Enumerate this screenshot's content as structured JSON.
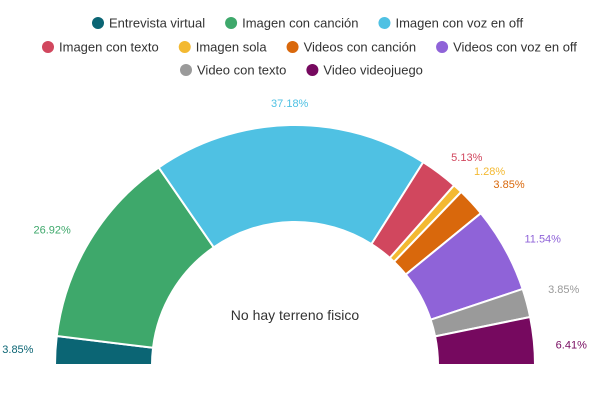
{
  "chart_data": {
    "type": "pie",
    "subtype": "half-donut",
    "center_label": "No hay terreno fisico",
    "legend_position": "top",
    "legend": [
      {
        "name": "Entrevista virtual",
        "color": "#0b6574"
      },
      {
        "name": "Imagen con canción",
        "color": "#3ea86b"
      },
      {
        "name": "Imagen con voz en off",
        "color": "#4fc1e3"
      },
      {
        "name": "Imagen con texto",
        "color": "#d1475e"
      },
      {
        "name": "Imagen sola",
        "color": "#f3b932"
      },
      {
        "name": "Videos con canción",
        "color": "#d9680c"
      },
      {
        "name": "Videos con voz en off",
        "color": "#8f63d8"
      },
      {
        "name": "Video con texto",
        "color": "#9a9a9a"
      },
      {
        "name": "Video videojuego",
        "color": "#76095f"
      }
    ],
    "slices": [
      {
        "name": "Entrevista virtual",
        "value": 3.85,
        "label": "3.85%",
        "color": "#0b6574"
      },
      {
        "name": "Imagen con canción",
        "value": 26.92,
        "label": "26.92%",
        "color": "#3ea86b"
      },
      {
        "name": "Imagen con voz en off",
        "value": 37.18,
        "label": "37.18%",
        "color": "#4fc1e3"
      },
      {
        "name": "Imagen con texto",
        "value": 5.13,
        "label": "5.13%",
        "color": "#d1475e"
      },
      {
        "name": "Imagen sola",
        "value": 1.28,
        "label": "1.28%",
        "color": "#f3b932"
      },
      {
        "name": "Videos con canción",
        "value": 3.85,
        "label": "3.85%",
        "color": "#d9680c"
      },
      {
        "name": "Videos con voz en off",
        "value": 11.54,
        "label": "11.54%",
        "color": "#8f63d8"
      },
      {
        "name": "Video con texto",
        "value": 3.85,
        "label": "3.85%",
        "color": "#9a9a9a"
      },
      {
        "name": "Video videojuego",
        "value": 6.41,
        "label": "6.41%",
        "color": "#76095f"
      }
    ]
  }
}
